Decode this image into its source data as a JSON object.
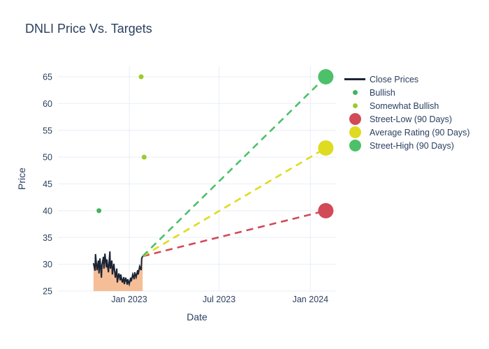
{
  "page": {
    "title": "DNLI Price Vs. Targets"
  },
  "colors": {
    "text": "#2a3f5f",
    "grid": "#e8eef7",
    "background": "#ffffff",
    "close_line": "#1c2536",
    "close_fill": "#f5be97",
    "bullish": "#43b45c",
    "somewhat_bullish": "#9ccb2e",
    "street_low": "#d14a56",
    "average_rating": "#dedb21",
    "street_high": "#4dc06a"
  },
  "legend": {
    "items": [
      {
        "label": "Close Prices",
        "swatch": "line",
        "color": "#1c2536"
      },
      {
        "label": "Bullish",
        "swatch": "dot-small",
        "color": "#43b45c"
      },
      {
        "label": "Somewhat Bullish",
        "swatch": "dot-small",
        "color": "#9ccb2e"
      },
      {
        "label": "Street-Low (90 Days)",
        "swatch": "dot-large",
        "color": "#d14a56"
      },
      {
        "label": "Average Rating (90 Days)",
        "swatch": "dot-large",
        "color": "#dedb21"
      },
      {
        "label": "Street-High (90 Days)",
        "swatch": "dot-large",
        "color": "#4dc06a"
      }
    ]
  },
  "chart_data": {
    "type": "line",
    "title": "DNLI Price Vs. Targets",
    "xlabel": "Date",
    "ylabel": "Price",
    "grid": true,
    "legend_position": "right",
    "ylim": [
      25,
      67
    ],
    "xlim": [
      "2022-08-10",
      "2024-02-22"
    ],
    "yticks": [
      25,
      30,
      35,
      40,
      45,
      50,
      55,
      60,
      65
    ],
    "xticks": [
      {
        "date": "2023-01-01",
        "label": "Jan 2023"
      },
      {
        "date": "2023-07-01",
        "label": "Jul 2023"
      },
      {
        "date": "2024-01-01",
        "label": "Jan 2024"
      }
    ],
    "series": [
      {
        "name": "Close Prices",
        "mode": "line",
        "color": "#1c2536",
        "fill_to_bottom": true,
        "fill_color": "#f5be97",
        "points": [
          [
            "2022-10-21",
            30.2
          ],
          [
            "2022-10-24",
            28.8
          ],
          [
            "2022-10-25",
            31.9
          ],
          [
            "2022-10-28",
            28.9
          ],
          [
            "2022-10-31",
            30.7
          ],
          [
            "2022-11-01",
            28.3
          ],
          [
            "2022-11-03",
            31.1
          ],
          [
            "2022-11-06",
            27.5
          ],
          [
            "2022-11-07",
            29.8
          ],
          [
            "2022-11-10",
            31.4
          ],
          [
            "2022-11-11",
            29.2
          ],
          [
            "2022-11-13",
            32.0
          ],
          [
            "2022-11-16",
            29.4
          ],
          [
            "2022-11-17",
            30.9
          ],
          [
            "2022-11-20",
            28.5
          ],
          [
            "2022-11-23",
            32.4
          ],
          [
            "2022-11-24",
            29.2
          ],
          [
            "2022-11-27",
            30.7
          ],
          [
            "2022-11-28",
            28.1
          ],
          [
            "2022-12-01",
            30.1
          ],
          [
            "2022-12-04",
            27.5
          ],
          [
            "2022-12-07",
            29.2
          ],
          [
            "2022-12-08",
            26.6
          ],
          [
            "2022-12-11",
            28.3
          ],
          [
            "2022-12-14",
            27.0
          ],
          [
            "2022-12-15",
            28.1
          ],
          [
            "2022-12-18",
            26.6
          ],
          [
            "2022-12-21",
            27.6
          ],
          [
            "2022-12-22",
            26.3
          ],
          [
            "2022-12-25",
            27.5
          ],
          [
            "2022-12-28",
            26.2
          ],
          [
            "2022-12-29",
            27.2
          ],
          [
            "2023-01-01",
            26.3
          ],
          [
            "2023-01-04",
            27.5
          ],
          [
            "2023-01-05",
            26.8
          ],
          [
            "2023-01-08",
            28.1
          ],
          [
            "2023-01-11",
            27.2
          ],
          [
            "2023-01-12",
            28.5
          ],
          [
            "2023-01-15",
            27.6
          ],
          [
            "2023-01-18",
            28.9
          ],
          [
            "2023-01-19",
            28.1
          ],
          [
            "2023-01-22",
            29.6
          ],
          [
            "2023-01-25",
            28.9
          ],
          [
            "2023-01-26",
            31.1
          ],
          [
            "2023-01-28",
            31.5
          ]
        ]
      },
      {
        "name": "Bullish",
        "mode": "scatter",
        "color": "#43b45c",
        "marker_size": 7,
        "points": [
          [
            "2022-11-01",
            40
          ]
        ]
      },
      {
        "name": "Somewhat Bullish",
        "mode": "scatter",
        "color": "#9ccb2e",
        "marker_size": 7,
        "points": [
          [
            "2023-01-25",
            65
          ],
          [
            "2023-01-31",
            50
          ]
        ]
      },
      {
        "name": "Street-Low (90 Days)",
        "mode": "dashed_projection",
        "color": "#d14a56",
        "marker_size": 22,
        "points": [
          [
            "2023-01-28",
            31.5
          ],
          [
            "2024-02-01",
            40
          ]
        ]
      },
      {
        "name": "Average Rating (90 Days)",
        "mode": "dashed_projection",
        "color": "#dedb21",
        "marker_size": 22,
        "points": [
          [
            "2023-01-28",
            31.5
          ],
          [
            "2024-02-01",
            51.7
          ]
        ]
      },
      {
        "name": "Street-High (90 Days)",
        "mode": "dashed_projection",
        "color": "#4dc06a",
        "marker_size": 22,
        "points": [
          [
            "2023-01-28",
            31.5
          ],
          [
            "2024-02-01",
            65
          ]
        ]
      }
    ]
  }
}
